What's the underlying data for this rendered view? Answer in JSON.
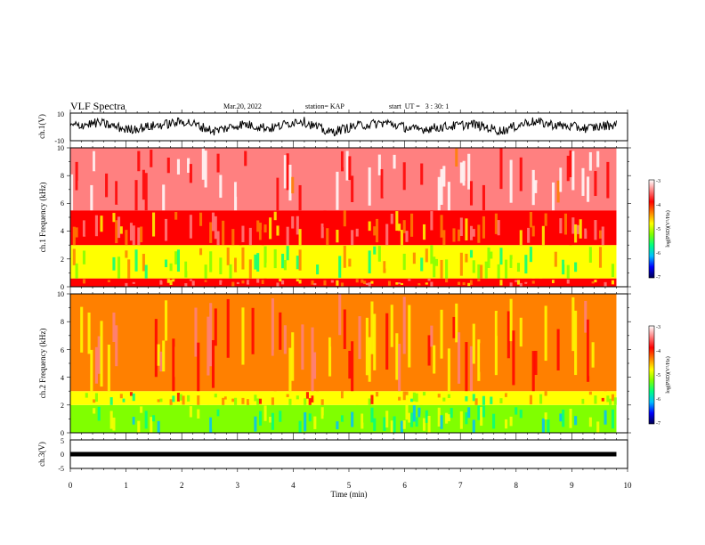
{
  "header": {
    "title": "VLF Spectra",
    "date": "Mar.20, 2022",
    "station": "station= KAP",
    "start": "start  UT =   3 : 30: 1"
  },
  "colors": {
    "ramp": [
      "#000050",
      "#0000ff",
      "#00bfff",
      "#00ff80",
      "#80ff00",
      "#ffff00",
      "#ff8000",
      "#ff0000",
      "#ff8080",
      "#ffffff"
    ]
  },
  "chart_data": [
    {
      "type": "line",
      "panel": "waveform-ch1",
      "ylabel": "ch.1(V)",
      "ylim": [
        -10,
        10
      ],
      "yticks": [
        "10",
        "-10"
      ],
      "xlim": [
        0,
        10
      ],
      "series": [
        {
          "values": [
            0.5,
            3,
            -2,
            1,
            4,
            -3,
            2,
            -1,
            5,
            -4,
            1,
            3,
            -2,
            0,
            2,
            -3,
            4,
            1,
            -1,
            2
          ]
        }
      ]
    },
    {
      "type": "heatmap",
      "panel": "spectrogram-ch1",
      "ylabel": "ch.1 Frequency (kHz)",
      "ylim": [
        0,
        10
      ],
      "yticks": [
        "0",
        "2",
        "4",
        "6",
        "8",
        "10"
      ],
      "xlim": [
        0,
        10
      ],
      "colorbar": {
        "label": "log(PSD)(V²/Hz)",
        "ticks": [
          "-3",
          "-4",
          "-5",
          "-6",
          "-7"
        ],
        "range": [
          -7,
          -3
        ]
      },
      "bands": [
        {
          "from_khz": 0,
          "to_khz": 0.6,
          "level": -4.0
        },
        {
          "from_khz": 0.6,
          "to_khz": 3.0,
          "level": -5.0
        },
        {
          "from_khz": 3.0,
          "to_khz": 5.5,
          "level": -4.0
        },
        {
          "from_khz": 5.5,
          "to_khz": 10,
          "level": -3.4
        }
      ]
    },
    {
      "type": "heatmap",
      "panel": "spectrogram-ch2",
      "ylabel": "ch.2 Frequency (kHz)",
      "ylim": [
        0,
        10
      ],
      "yticks": [
        "0",
        "2",
        "4",
        "6",
        "8",
        "10"
      ],
      "xlim": [
        0,
        10
      ],
      "colorbar": {
        "label": "log(PSD)(V²/Hz)",
        "ticks": [
          "-3",
          "-4",
          "-5",
          "-6",
          "-7"
        ],
        "range": [
          -7,
          -3
        ]
      },
      "bands": [
        {
          "from_khz": 0,
          "to_khz": 2.0,
          "level": -5.4
        },
        {
          "from_khz": 2.0,
          "to_khz": 3.0,
          "level": -4.8
        },
        {
          "from_khz": 3.0,
          "to_khz": 10,
          "level": -4.2
        }
      ]
    },
    {
      "type": "line",
      "panel": "waveform-ch3",
      "ylabel": "ch.3(V)",
      "ylim": [
        -5,
        5
      ],
      "yticks": [
        "5",
        "0",
        "-5"
      ],
      "xlim": [
        0,
        10
      ],
      "xlabel": "Time (min)",
      "xticks": [
        "0",
        "1",
        "2",
        "3",
        "4",
        "5",
        "6",
        "7",
        "8",
        "9",
        "10"
      ],
      "series": [
        {
          "values": [
            0,
            0,
            0,
            0,
            0,
            0,
            0,
            0,
            0,
            0
          ]
        }
      ]
    }
  ]
}
